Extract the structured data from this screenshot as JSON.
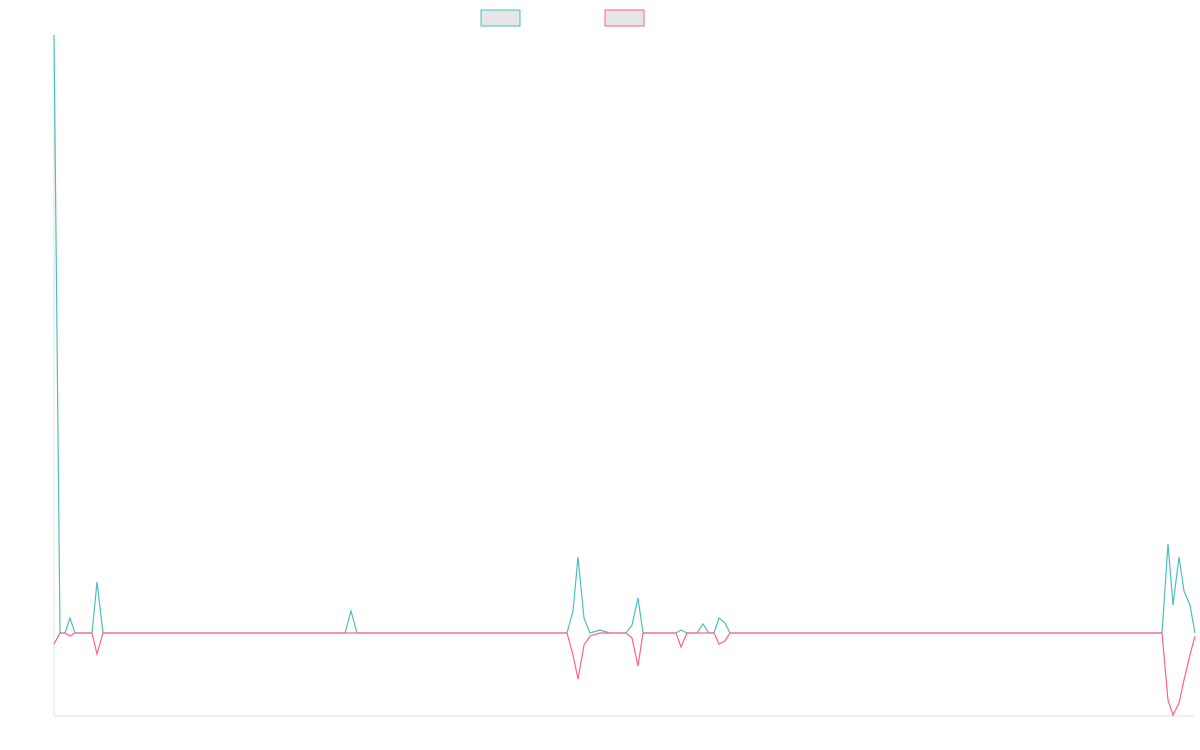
{
  "chart_data": {
    "type": "line",
    "xlim": [
      0,
      1141
    ],
    "ylim": [
      -83,
      598
    ],
    "series": [
      {
        "color": "#4bc0c0",
        "x": [
          0,
          6,
          11,
          16,
          21,
          38,
          43,
          49,
          291,
          297,
          303,
          513,
          519,
          524,
          530,
          536,
          546,
          556,
          572,
          578,
          584,
          589,
          622,
          627,
          633,
          643,
          649,
          655,
          660,
          665,
          671,
          676,
          1108,
          1114,
          1119,
          1125,
          1130,
          1136,
          1141
        ],
        "values": [
          598,
          0,
          0,
          15,
          0,
          0,
          51,
          0,
          0,
          22,
          0,
          0,
          22,
          76,
          15,
          0,
          3,
          0,
          0,
          8,
          35,
          0,
          0,
          3,
          0,
          0,
          9,
          0,
          0,
          15,
          10,
          0,
          0,
          89,
          28,
          76,
          42,
          28,
          0
        ]
      },
      {
        "color": "#ff6384",
        "x": [
          0,
          6,
          11,
          16,
          21,
          38,
          43,
          49,
          513,
          519,
          524,
          530,
          536,
          546,
          572,
          578,
          584,
          589,
          622,
          627,
          633,
          655,
          660,
          665,
          671,
          676,
          1108,
          1114,
          1119,
          1125,
          1130,
          1136,
          1141
        ],
        "values": [
          -11,
          0,
          0,
          -3,
          0,
          0,
          -21,
          0,
          0,
          -22,
          -46,
          -12,
          -3,
          0,
          0,
          -5,
          -33,
          0,
          0,
          -14,
          0,
          0,
          0,
          -11,
          -8,
          0,
          0,
          -67,
          -82,
          -70,
          -47,
          -22,
          -3
        ]
      }
    ]
  }
}
